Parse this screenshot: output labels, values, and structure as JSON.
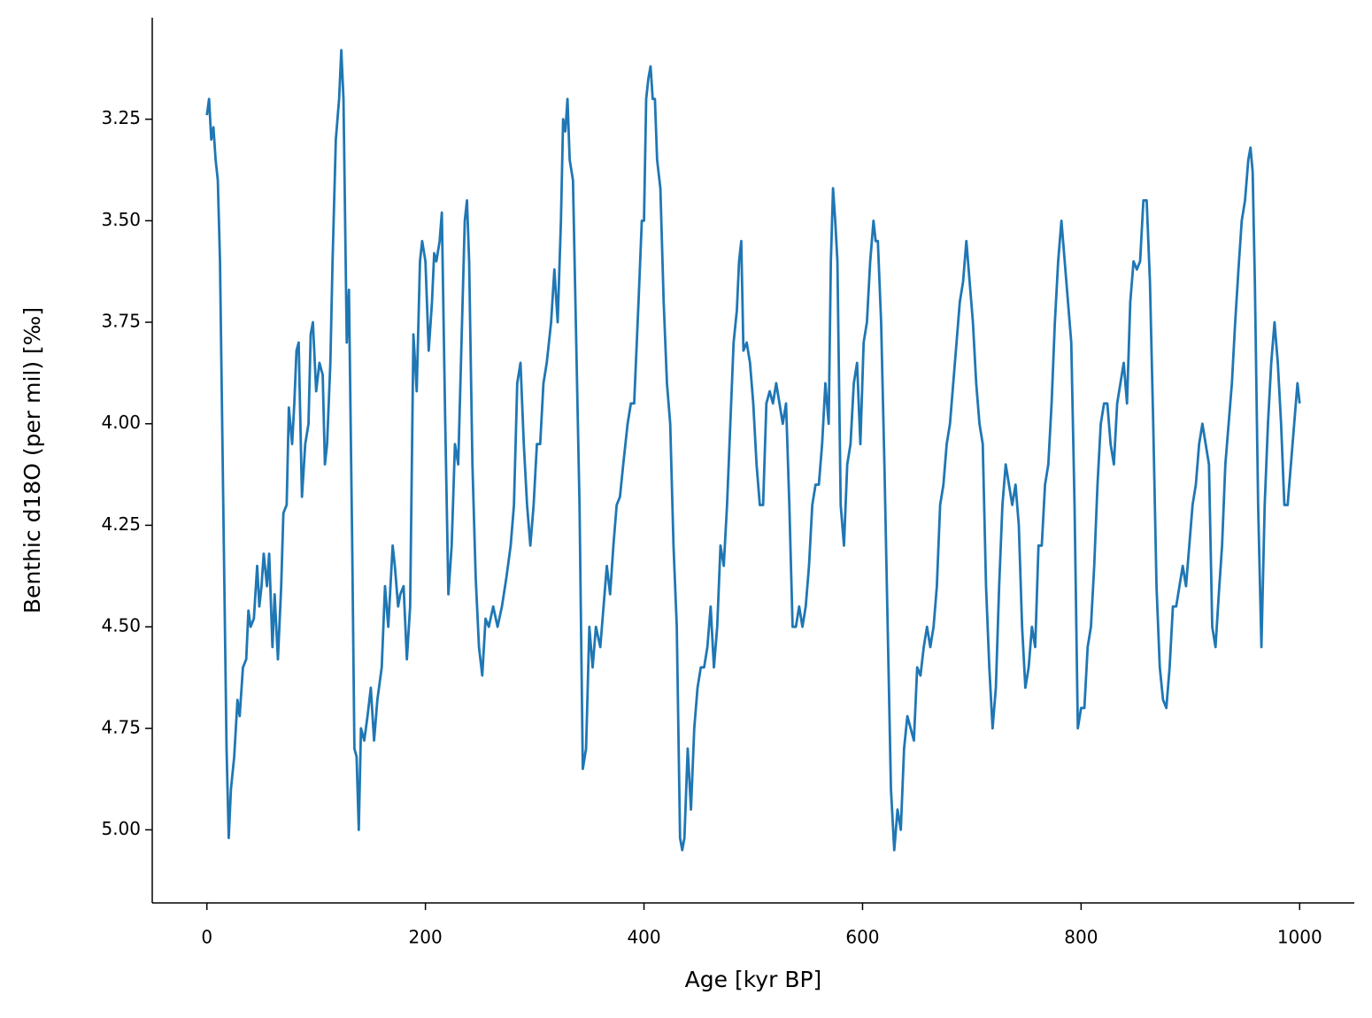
{
  "chart_data": {
    "type": "line",
    "x_label": "Age [kyr BP]",
    "y_label": "Benthic d18O (per mil) [‰]",
    "color": "#1f77b4",
    "xlim": [
      -50,
      1050
    ],
    "ylim": [
      5.18,
      3.0
    ],
    "xticks": [
      0,
      200,
      400,
      600,
      800,
      1000
    ],
    "yticks": [
      3.25,
      {
        "value": 3.5,
        "label": "3.50"
      },
      3.75,
      {
        "value": 4.0,
        "label": "4.00"
      },
      4.25,
      {
        "value": 4.5,
        "label": "4.50"
      },
      4.75,
      {
        "value": 5.0,
        "label": "5.00"
      }
    ],
    "x": [
      0,
      2,
      4,
      6,
      8,
      10,
      12,
      15,
      18,
      20,
      22,
      25,
      28,
      30,
      33,
      36,
      38,
      40,
      43,
      46,
      48,
      50,
      52,
      55,
      57,
      60,
      62,
      65,
      68,
      70,
      73,
      75,
      78,
      80,
      82,
      84,
      87,
      90,
      93,
      95,
      97,
      100,
      103,
      106,
      108,
      110,
      113,
      115,
      118,
      121,
      123,
      125,
      128,
      130,
      133,
      135,
      137,
      139,
      141,
      144,
      147,
      150,
      153,
      156,
      160,
      163,
      166,
      170,
      172,
      175,
      177,
      180,
      183,
      186,
      189,
      192,
      195,
      197,
      200,
      203,
      206,
      208,
      210,
      213,
      215,
      218,
      221,
      224,
      227,
      230,
      233,
      236,
      238,
      240,
      243,
      246,
      249,
      252,
      255,
      258,
      262,
      266,
      270,
      274,
      278,
      281,
      284,
      287,
      290,
      293,
      296,
      299,
      302,
      305,
      308,
      311,
      315,
      318,
      321,
      324,
      326,
      328,
      330,
      332,
      335,
      338,
      341,
      344,
      347,
      350,
      353,
      356,
      360,
      363,
      366,
      369,
      372,
      375,
      378,
      381,
      385,
      388,
      391,
      395,
      398,
      400,
      402,
      404,
      406,
      408,
      410,
      412,
      415,
      418,
      421,
      424,
      427,
      430,
      433,
      435,
      437,
      440,
      443,
      446,
      449,
      452,
      455,
      458,
      461,
      464,
      467,
      470,
      473,
      476,
      479,
      482,
      485,
      487,
      489,
      491,
      494,
      497,
      500,
      503,
      506,
      509,
      512,
      515,
      518,
      521,
      524,
      527,
      530,
      533,
      536,
      539,
      542,
      545,
      548,
      551,
      554,
      557,
      560,
      563,
      566,
      569,
      571,
      573,
      575,
      577,
      580,
      583,
      586,
      589,
      592,
      595,
      598,
      601,
      604,
      607,
      610,
      612,
      614,
      617,
      620,
      623,
      626,
      629,
      632,
      635,
      638,
      641,
      644,
      647,
      650,
      653,
      656,
      659,
      662,
      665,
      668,
      671,
      674,
      677,
      680,
      683,
      686,
      689,
      692,
      695,
      698,
      701,
      704,
      707,
      710,
      713,
      716,
      719,
      722,
      725,
      728,
      731,
      734,
      737,
      740,
      743,
      746,
      749,
      752,
      755,
      758,
      761,
      764,
      767,
      770,
      773,
      776,
      779,
      782,
      785,
      788,
      791,
      794,
      797,
      800,
      803,
      806,
      809,
      812,
      815,
      818,
      821,
      824,
      827,
      830,
      833,
      836,
      839,
      842,
      845,
      848,
      851,
      854,
      857,
      860,
      863,
      866,
      869,
      872,
      875,
      878,
      881,
      884,
      887,
      890,
      893,
      896,
      899,
      902,
      905,
      908,
      911,
      914,
      917,
      920,
      923,
      926,
      929,
      932,
      935,
      938,
      941,
      944,
      947,
      950,
      953,
      955,
      957,
      959,
      962,
      965,
      968,
      971,
      974,
      977,
      980,
      983,
      986,
      989,
      992,
      995,
      998,
      1000
    ],
    "values": [
      3.24,
      3.2,
      3.3,
      3.27,
      3.35,
      3.4,
      3.6,
      4.2,
      4.8,
      5.02,
      4.9,
      4.82,
      4.68,
      4.72,
      4.6,
      4.58,
      4.46,
      4.5,
      4.48,
      4.35,
      4.45,
      4.4,
      4.32,
      4.4,
      4.32,
      4.55,
      4.42,
      4.58,
      4.4,
      4.22,
      4.2,
      3.96,
      4.05,
      3.95,
      3.82,
      3.8,
      4.18,
      4.05,
      4.0,
      3.78,
      3.75,
      3.92,
      3.85,
      3.88,
      4.1,
      4.05,
      3.85,
      3.6,
      3.3,
      3.2,
      3.08,
      3.2,
      3.8,
      3.67,
      4.3,
      4.8,
      4.82,
      5.0,
      4.75,
      4.78,
      4.72,
      4.65,
      4.78,
      4.68,
      4.6,
      4.4,
      4.5,
      4.3,
      4.35,
      4.45,
      4.42,
      4.4,
      4.58,
      4.45,
      3.78,
      3.92,
      3.6,
      3.55,
      3.6,
      3.82,
      3.7,
      3.58,
      3.6,
      3.55,
      3.48,
      3.98,
      4.42,
      4.3,
      4.05,
      4.1,
      3.8,
      3.5,
      3.45,
      3.6,
      4.1,
      4.38,
      4.55,
      4.62,
      4.48,
      4.5,
      4.45,
      4.5,
      4.45,
      4.38,
      4.3,
      4.2,
      3.9,
      3.85,
      4.05,
      4.2,
      4.3,
      4.2,
      4.05,
      4.05,
      3.9,
      3.85,
      3.75,
      3.62,
      3.75,
      3.5,
      3.25,
      3.28,
      3.2,
      3.35,
      3.4,
      3.8,
      4.2,
      4.85,
      4.8,
      4.5,
      4.6,
      4.5,
      4.55,
      4.45,
      4.35,
      4.42,
      4.3,
      4.2,
      4.18,
      4.1,
      4.0,
      3.95,
      3.95,
      3.7,
      3.5,
      3.5,
      3.2,
      3.15,
      3.12,
      3.2,
      3.2,
      3.35,
      3.42,
      3.7,
      3.9,
      4.0,
      4.3,
      4.5,
      5.02,
      5.05,
      5.02,
      4.8,
      4.95,
      4.75,
      4.65,
      4.6,
      4.6,
      4.55,
      4.45,
      4.6,
      4.5,
      4.3,
      4.35,
      4.2,
      4.0,
      3.8,
      3.72,
      3.6,
      3.55,
      3.82,
      3.8,
      3.85,
      3.95,
      4.1,
      4.2,
      4.2,
      3.95,
      3.92,
      3.95,
      3.9,
      3.95,
      4.0,
      3.95,
      4.2,
      4.5,
      4.5,
      4.45,
      4.5,
      4.45,
      4.35,
      4.2,
      4.15,
      4.15,
      4.05,
      3.9,
      4.0,
      3.6,
      3.42,
      3.5,
      3.6,
      4.2,
      4.3,
      4.1,
      4.05,
      3.9,
      3.85,
      4.05,
      3.8,
      3.75,
      3.6,
      3.5,
      3.55,
      3.55,
      3.75,
      4.1,
      4.5,
      4.9,
      5.05,
      4.95,
      5.0,
      4.8,
      4.72,
      4.75,
      4.78,
      4.6,
      4.62,
      4.55,
      4.5,
      4.55,
      4.5,
      4.4,
      4.2,
      4.15,
      4.05,
      4.0,
      3.9,
      3.8,
      3.7,
      3.65,
      3.55,
      3.65,
      3.75,
      3.9,
      4.0,
      4.05,
      4.4,
      4.6,
      4.75,
      4.65,
      4.4,
      4.2,
      4.1,
      4.15,
      4.2,
      4.15,
      4.25,
      4.5,
      4.65,
      4.6,
      4.5,
      4.55,
      4.3,
      4.3,
      4.15,
      4.1,
      3.95,
      3.75,
      3.6,
      3.5,
      3.6,
      3.7,
      3.8,
      4.2,
      4.75,
      4.7,
      4.7,
      4.55,
      4.5,
      4.35,
      4.15,
      4.0,
      3.95,
      3.95,
      4.05,
      4.1,
      3.95,
      3.9,
      3.85,
      3.95,
      3.7,
      3.6,
      3.62,
      3.6,
      3.45,
      3.45,
      3.65,
      4.0,
      4.4,
      4.6,
      4.68,
      4.7,
      4.6,
      4.45,
      4.45,
      4.4,
      4.35,
      4.4,
      4.3,
      4.2,
      4.15,
      4.05,
      4.0,
      4.05,
      4.1,
      4.5,
      4.55,
      4.42,
      4.3,
      4.1,
      4.0,
      3.9,
      3.75,
      3.62,
      3.5,
      3.45,
      3.35,
      3.32,
      3.38,
      3.65,
      4.2,
      4.55,
      4.2,
      4.0,
      3.85,
      3.75,
      3.85,
      4.0,
      4.2,
      4.2,
      4.1,
      4.0,
      3.9,
      3.95
    ]
  }
}
